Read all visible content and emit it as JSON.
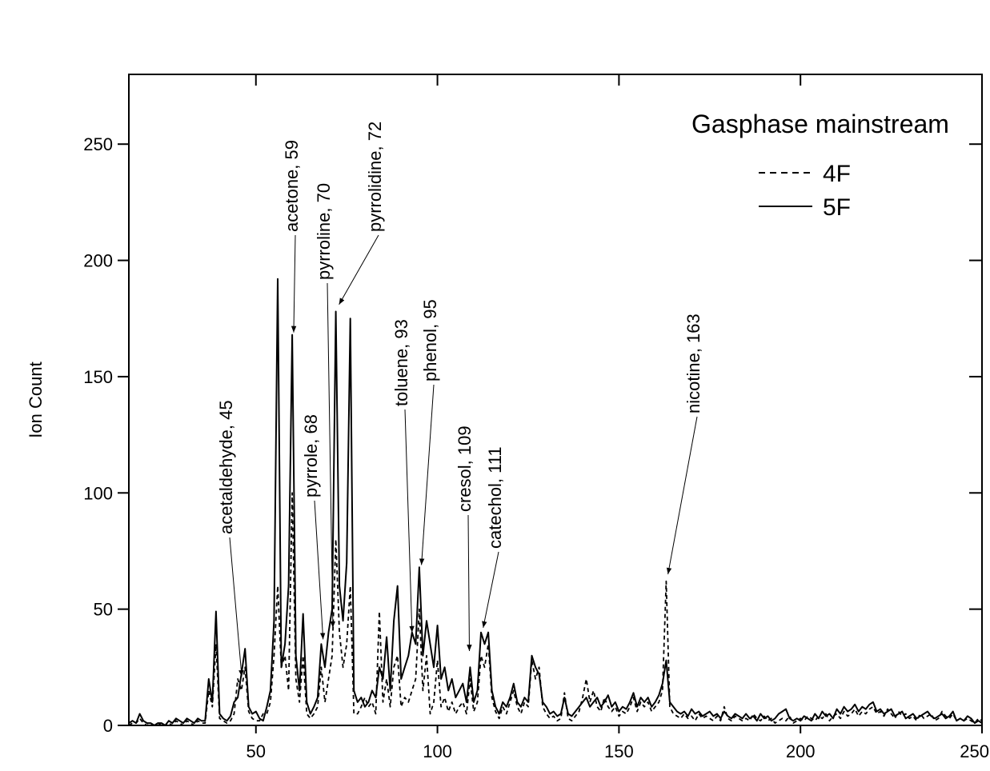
{
  "chart_data": {
    "type": "line",
    "legend_title": "Gasphase mainstream",
    "y_label": "Ion Count",
    "legend": "upper right",
    "xlim": [
      15,
      250
    ],
    "ylim": [
      0,
      280
    ],
    "xticks": [
      50,
      100,
      150,
      200,
      250
    ],
    "yticks": [
      0,
      50,
      100,
      150,
      200,
      250
    ],
    "x": [
      15,
      16,
      17,
      18,
      19,
      20,
      21,
      22,
      23,
      24,
      25,
      26,
      27,
      28,
      29,
      30,
      31,
      32,
      33,
      34,
      35,
      36,
      37,
      38,
      39,
      40,
      41,
      42,
      43,
      44,
      45,
      46,
      47,
      48,
      49,
      50,
      51,
      52,
      53,
      54,
      55,
      56,
      57,
      58,
      59,
      60,
      61,
      62,
      63,
      64,
      65,
      66,
      67,
      68,
      69,
      70,
      71,
      72,
      73,
      74,
      75,
      76,
      77,
      78,
      79,
      80,
      81,
      82,
      83,
      84,
      85,
      86,
      87,
      88,
      89,
      90,
      91,
      92,
      93,
      94,
      95,
      96,
      97,
      98,
      99,
      100,
      101,
      102,
      103,
      104,
      105,
      106,
      107,
      108,
      109,
      110,
      111,
      112,
      113,
      114,
      115,
      116,
      117,
      118,
      119,
      120,
      121,
      122,
      123,
      124,
      125,
      126,
      127,
      128,
      129,
      130,
      131,
      132,
      133,
      134,
      135,
      136,
      137,
      138,
      139,
      140,
      141,
      142,
      143,
      144,
      145,
      146,
      147,
      148,
      149,
      150,
      151,
      152,
      153,
      154,
      155,
      156,
      157,
      158,
      159,
      160,
      161,
      162,
      163,
      164,
      165,
      166,
      167,
      168,
      169,
      170,
      171,
      172,
      173,
      174,
      175,
      176,
      177,
      178,
      179,
      180,
      181,
      182,
      183,
      184,
      185,
      186,
      187,
      188,
      189,
      190,
      191,
      192,
      193,
      194,
      195,
      196,
      197,
      198,
      199,
      200,
      201,
      202,
      203,
      204,
      205,
      206,
      207,
      208,
      209,
      210,
      211,
      212,
      213,
      214,
      215,
      216,
      217,
      218,
      219,
      220,
      221,
      222,
      223,
      224,
      225,
      226,
      227,
      228,
      229,
      230,
      231,
      232,
      233,
      234,
      235,
      236,
      237,
      238,
      239,
      240,
      241,
      242,
      243,
      244,
      245,
      246,
      247,
      248,
      249,
      250
    ],
    "series": [
      {
        "name": "4F",
        "color": "#000000",
        "dash": "dashed",
        "values": [
          0,
          1,
          1,
          3,
          1,
          0,
          1,
          0,
          0,
          1,
          0,
          1,
          0,
          2,
          1,
          0,
          2,
          1,
          0,
          2,
          1,
          1,
          15,
          8,
          35,
          3,
          2,
          1,
          2,
          5,
          20,
          15,
          25,
          6,
          3,
          2,
          2,
          5,
          5,
          10,
          30,
          60,
          25,
          30,
          15,
          100,
          20,
          10,
          30,
          5,
          3,
          5,
          8,
          25,
          10,
          20,
          30,
          80,
          40,
          25,
          35,
          60,
          5,
          5,
          8,
          12,
          8,
          10,
          5,
          49,
          10,
          20,
          8,
          25,
          30,
          8,
          12,
          10,
          15,
          20,
          50,
          15,
          30,
          5,
          10,
          28,
          8,
          12,
          6,
          10,
          5,
          8,
          10,
          5,
          20,
          6,
          10,
          30,
          25,
          35,
          12,
          6,
          3,
          8,
          5,
          10,
          15,
          8,
          5,
          10,
          8,
          28,
          20,
          25,
          8,
          5,
          3,
          4,
          2,
          3,
          14,
          3,
          2,
          4,
          6,
          12,
          20,
          10,
          15,
          8,
          6,
          12,
          8,
          6,
          8,
          4,
          6,
          5,
          8,
          12,
          6,
          10,
          8,
          10,
          6,
          8,
          10,
          15,
          62,
          8,
          5,
          4,
          3,
          5,
          3,
          4,
          2,
          5,
          3,
          4,
          3,
          2,
          4,
          2,
          8,
          3,
          2,
          4,
          3,
          2,
          3,
          2,
          5,
          3,
          2,
          4,
          2,
          3,
          1,
          2,
          3,
          2,
          4,
          1,
          2,
          3,
          2,
          4,
          3,
          2,
          4,
          3,
          5,
          2,
          4,
          5,
          3,
          6,
          4,
          5,
          7,
          4,
          6,
          5,
          7,
          8,
          5,
          6,
          4,
          7,
          5,
          3,
          6,
          4,
          5,
          3,
          4,
          2,
          5,
          3,
          4,
          5,
          2,
          3,
          6,
          4,
          3,
          5,
          2,
          3,
          2,
          3,
          2,
          1,
          3,
          2
        ]
      },
      {
        "name": "5F",
        "color": "#000000",
        "dash": "solid",
        "values": [
          1,
          2,
          1,
          5,
          2,
          1,
          1,
          0,
          1,
          1,
          0,
          2,
          1,
          3,
          2,
          1,
          3,
          2,
          1,
          3,
          2,
          2,
          20,
          10,
          49,
          5,
          3,
          2,
          4,
          10,
          12,
          22,
          33,
          8,
          5,
          6,
          3,
          2,
          8,
          15,
          45,
          192,
          25,
          35,
          60,
          168,
          30,
          15,
          48,
          10,
          5,
          8,
          12,
          35,
          25,
          40,
          50,
          178,
          60,
          45,
          70,
          175,
          15,
          10,
          12,
          8,
          10,
          15,
          12,
          25,
          20,
          38,
          15,
          45,
          60,
          20,
          25,
          30,
          40,
          35,
          68,
          30,
          45,
          35,
          25,
          43,
          20,
          25,
          15,
          20,
          12,
          15,
          18,
          10,
          25,
          10,
          15,
          40,
          35,
          40,
          15,
          8,
          5,
          10,
          8,
          12,
          18,
          10,
          8,
          12,
          10,
          30,
          25,
          22,
          10,
          8,
          5,
          6,
          4,
          5,
          12,
          5,
          4,
          6,
          8,
          10,
          12,
          8,
          10,
          12,
          8,
          10,
          13,
          8,
          10,
          6,
          8,
          7,
          10,
          14,
          8,
          12,
          10,
          12,
          8,
          10,
          13,
          18,
          28,
          10,
          8,
          6,
          5,
          6,
          4,
          7,
          5,
          6,
          4,
          5,
          6,
          4,
          5,
          3,
          6,
          4,
          3,
          5,
          4,
          3,
          5,
          3,
          4,
          2,
          5,
          3,
          4,
          2,
          3,
          5,
          6,
          7,
          3,
          2,
          3,
          2,
          4,
          3,
          2,
          5,
          3,
          6,
          4,
          5,
          3,
          7,
          5,
          8,
          6,
          7,
          9,
          6,
          8,
          7,
          9,
          10,
          6,
          7,
          5,
          6,
          7,
          4,
          5,
          6,
          3,
          4,
          5,
          3,
          4,
          5,
          6,
          4,
          3,
          4,
          5,
          3,
          4,
          6,
          2,
          3,
          2,
          4,
          3,
          1,
          2,
          1
        ]
      }
    ],
    "annotations": [
      {
        "label": "acetaldehyde, 45",
        "x": 46.1,
        "y": 21
      },
      {
        "label": "acetone, 59",
        "x": 60.4,
        "y": 169
      },
      {
        "label": "pyrroline, 70",
        "x": 71.2,
        "y": 42
      },
      {
        "label": "pyrrolidine, 72",
        "x": 72.9,
        "y": 181
      },
      {
        "label": "pyrrole, 68",
        "x": 68.5,
        "y": 37
      },
      {
        "label": "toluene, 93",
        "x": 93,
        "y": 40
      },
      {
        "label": "phenol, 95",
        "x": 95.6,
        "y": 69
      },
      {
        "label": "cresol, 109",
        "x": 108.8,
        "y": 32
      },
      {
        "label": "catechol, 111",
        "x": 112.6,
        "y": 42
      },
      {
        "label": "nicotine, 163",
        "x": 163.5,
        "y": 65
      }
    ]
  }
}
